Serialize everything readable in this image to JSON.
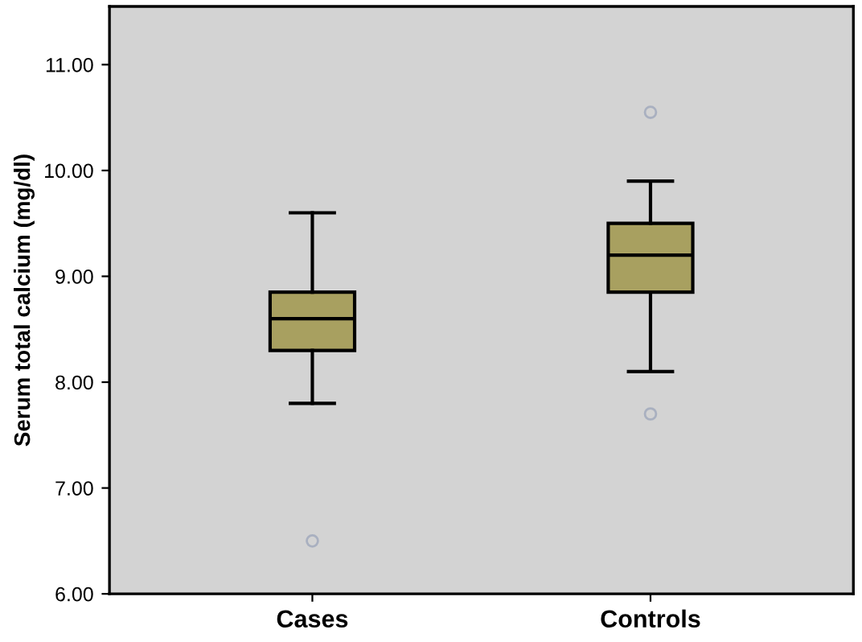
{
  "chart_data": {
    "type": "box",
    "ylabel": "Serum total calcium (mg/dl)",
    "categories": [
      "Cases",
      "Controls"
    ],
    "boxes": [
      {
        "low": 7.8,
        "q1": 8.3,
        "median": 8.6,
        "q3": 8.85,
        "high": 9.6,
        "outliers": [
          6.5
        ]
      },
      {
        "low": 8.1,
        "q1": 8.85,
        "median": 9.2,
        "q3": 9.5,
        "high": 9.9,
        "outliers": [
          10.55,
          7.7
        ]
      }
    ],
    "color": "#a8a060",
    "ylim": [
      6,
      11.55
    ],
    "yticks": [
      {
        "value": 6,
        "label": "6.00"
      },
      {
        "value": 7,
        "label": "7.00"
      },
      {
        "value": 8,
        "label": "8.00"
      },
      {
        "value": 9,
        "label": "9.00"
      },
      {
        "value": 10,
        "label": "10.00"
      },
      {
        "value": 11,
        "label": "11.00"
      }
    ],
    "grid": false,
    "legend": false
  }
}
